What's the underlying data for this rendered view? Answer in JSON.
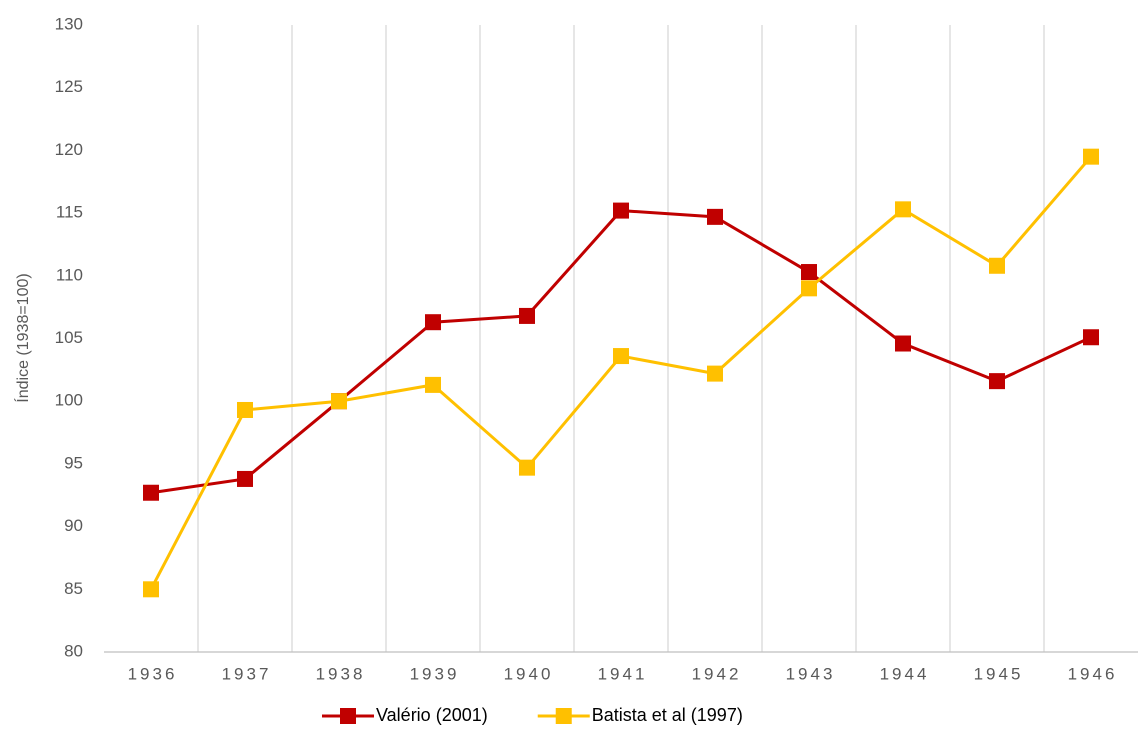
{
  "chart_data": {
    "type": "line",
    "y_label": "Índice (1938=100)",
    "categories": [
      "1936",
      "1937",
      "1938",
      "1939",
      "1940",
      "1941",
      "1942",
      "1943",
      "1944",
      "1945",
      "1946"
    ],
    "series": [
      {
        "name": "Valério (2001)",
        "color": "#c00000",
        "values": [
          92.7,
          93.8,
          100,
          106.3,
          106.8,
          115.2,
          114.7,
          110.3,
          104.6,
          101.6,
          105.1
        ]
      },
      {
        "name": "Batista et al (1997)",
        "color": "#ffc000",
        "values": [
          85.0,
          99.3,
          100,
          101.3,
          94.7,
          103.6,
          102.2,
          109.0,
          115.3,
          110.8,
          119.5
        ]
      }
    ],
    "ylim": [
      80,
      130
    ],
    "yticks": [
      80,
      85,
      90,
      95,
      100,
      105,
      110,
      115,
      120,
      125,
      130
    ],
    "grid": true,
    "legend": "bottom"
  }
}
